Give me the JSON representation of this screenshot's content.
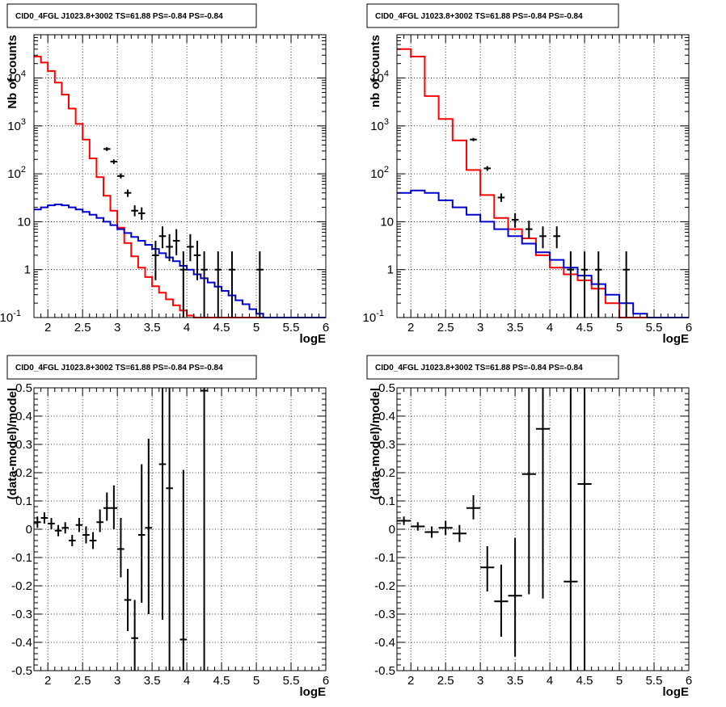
{
  "chart_data": [
    {
      "type": "line",
      "title": "CID0_4FGL J1023.8+3002 TS=61.88 PS=-0.84 PS=-0.84",
      "xlabel": "logE",
      "ylabel": "Nb of counts",
      "xlim": [
        1.8,
        6.0
      ],
      "ylim": [
        0.1,
        80000
      ],
      "yscale": "log",
      "grid": true,
      "x_ticks": [
        "2",
        "2.5",
        "3",
        "3.5",
        "4",
        "4.5",
        "5",
        "5.5",
        "6"
      ],
      "y_ticks": [
        "10^-1",
        "1",
        "10",
        "10^2",
        "10^3",
        "10^4"
      ],
      "bin_edges": [
        1.8,
        1.9,
        2.0,
        2.1,
        2.2,
        2.3,
        2.4,
        2.5,
        2.6,
        2.7,
        2.8,
        2.9,
        3.0,
        3.1,
        3.2,
        3.3,
        3.4,
        3.5,
        3.6,
        3.7,
        3.8,
        3.9,
        4.0,
        4.1,
        4.2,
        4.3,
        4.4,
        4.5,
        4.6,
        4.7,
        4.8,
        4.9,
        5.0,
        5.1,
        5.2,
        5.3,
        5.4,
        5.5,
        5.6,
        5.7,
        5.8,
        5.9,
        6.0
      ],
      "series": [
        {
          "color": "#ff0000",
          "kind": "step",
          "values": [
            28000,
            21000,
            14000,
            8000,
            4500,
            2300,
            1100,
            520,
            210,
            85,
            35,
            17,
            7.5,
            3.6,
            1.9,
            1.1,
            0.7,
            0.45,
            0.33,
            0.24,
            0.18,
            0.14,
            0.11,
            0.1,
            0.1,
            0.1,
            0.1,
            0.1,
            0.1,
            0.1,
            0.1,
            0.1,
            0.1,
            0.1,
            0.1,
            0.1,
            0.1,
            0.1,
            0.1,
            0.1,
            0.1,
            0.1
          ]
        },
        {
          "color": "#0000cc",
          "kind": "step",
          "values": [
            18,
            20,
            22,
            23,
            22,
            20,
            18,
            16,
            14,
            12,
            10,
            8.5,
            7,
            5.8,
            4.8,
            4,
            3.3,
            2.7,
            2.2,
            1.8,
            1.5,
            1.2,
            1.0,
            0.8,
            0.66,
            0.54,
            0.44,
            0.36,
            0.29,
            0.23,
            0.19,
            0.15,
            0.12,
            0.1,
            0.1,
            0.1,
            0.1,
            0.1,
            0.1,
            0.1,
            0.1,
            0.1
          ]
        }
      ],
      "points": [
        {
          "x": 2.85,
          "y": 330,
          "lo": 300,
          "hi": 360
        },
        {
          "x": 2.95,
          "y": 180,
          "lo": 160,
          "hi": 200
        },
        {
          "x": 3.05,
          "y": 90,
          "lo": 80,
          "hi": 102
        },
        {
          "x": 3.15,
          "y": 40,
          "lo": 33,
          "hi": 47
        },
        {
          "x": 3.25,
          "y": 17,
          "lo": 13,
          "hi": 22
        },
        {
          "x": 3.35,
          "y": 15,
          "lo": 11,
          "hi": 20
        },
        {
          "x": 3.55,
          "y": 2,
          "lo": 0.6,
          "hi": 4
        },
        {
          "x": 3.65,
          "y": 5,
          "lo": 2.8,
          "hi": 8
        },
        {
          "x": 3.75,
          "y": 3,
          "lo": 1.5,
          "hi": 5.5
        },
        {
          "x": 3.85,
          "y": 4,
          "lo": 2,
          "hi": 7
        },
        {
          "x": 3.95,
          "y": 1,
          "lo": 0.1,
          "hi": 2.4
        },
        {
          "x": 4.05,
          "y": 3,
          "lo": 1.5,
          "hi": 5.5
        },
        {
          "x": 4.15,
          "y": 2,
          "lo": 0.6,
          "hi": 4
        },
        {
          "x": 4.25,
          "y": 1,
          "lo": 0.1,
          "hi": 2.4
        },
        {
          "x": 4.45,
          "y": 1,
          "lo": 0.1,
          "hi": 2.4
        },
        {
          "x": 4.65,
          "y": 1,
          "lo": 0.1,
          "hi": 2.4
        },
        {
          "x": 5.05,
          "y": 1,
          "lo": 0.1,
          "hi": 2.4
        }
      ]
    },
    {
      "type": "line",
      "title": "CID0_4FGL J1023.8+3002 TS=61.88 PS=-0.84 PS=-0.84",
      "xlabel": "logE",
      "ylabel": "nb of counts",
      "xlim": [
        1.8,
        6.0
      ],
      "ylim": [
        0.1,
        80000
      ],
      "yscale": "log",
      "grid": true,
      "x_ticks": [
        "2",
        "2.5",
        "3",
        "3.5",
        "4",
        "4.5",
        "5",
        "5.5",
        "6"
      ],
      "y_ticks": [
        "10^-1",
        "1",
        "10",
        "10^2",
        "10^3",
        "10^4"
      ],
      "bin_edges": [
        1.8,
        2.0,
        2.2,
        2.4,
        2.6,
        2.8,
        3.0,
        3.2,
        3.4,
        3.6,
        3.8,
        4.0,
        4.2,
        4.4,
        4.6,
        4.8,
        5.0,
        5.2,
        5.4,
        5.6,
        5.8,
        6.0
      ],
      "series": [
        {
          "color": "#ff0000",
          "kind": "step",
          "values": [
            40000,
            28000,
            4200,
            1400,
            500,
            120,
            36,
            12,
            7,
            4.5,
            2,
            1.1,
            0.8,
            0.6,
            0.4,
            0.2,
            0.1,
            0.1,
            0.1,
            0.1,
            0.1
          ]
        },
        {
          "color": "#0000cc",
          "kind": "step",
          "values": [
            40,
            45,
            40,
            28,
            20,
            14,
            10,
            7,
            5,
            3.5,
            2.3,
            1.6,
            1.1,
            0.75,
            0.5,
            0.3,
            0.2,
            0.12,
            0.1,
            0.1,
            0.1
          ]
        }
      ],
      "points": [
        {
          "x": 2.9,
          "y": 520,
          "lo": 480,
          "hi": 560
        },
        {
          "x": 3.1,
          "y": 130,
          "lo": 115,
          "hi": 145
        },
        {
          "x": 3.3,
          "y": 32,
          "lo": 26,
          "hi": 39
        },
        {
          "x": 3.5,
          "y": 11,
          "lo": 7.5,
          "hi": 15
        },
        {
          "x": 3.7,
          "y": 7,
          "lo": 4.5,
          "hi": 10.5
        },
        {
          "x": 3.9,
          "y": 5,
          "lo": 2.8,
          "hi": 8
        },
        {
          "x": 4.1,
          "y": 5,
          "lo": 2.8,
          "hi": 8
        },
        {
          "x": 4.3,
          "y": 1,
          "lo": 0.1,
          "hi": 2.4
        },
        {
          "x": 4.5,
          "y": 1,
          "lo": 0.1,
          "hi": 2.4
        },
        {
          "x": 4.7,
          "y": 1,
          "lo": 0.1,
          "hi": 2.4
        },
        {
          "x": 5.1,
          "y": 1,
          "lo": 0.1,
          "hi": 2.4
        }
      ]
    },
    {
      "type": "scatter",
      "title": "CID0_4FGL J1023.8+3002 TS=61.88 PS=-0.84 PS=-0.84",
      "xlabel": "logE",
      "ylabel": "(data-model)/model",
      "xlim": [
        1.8,
        6.0
      ],
      "ylim": [
        -0.5,
        0.5
      ],
      "grid": true,
      "x_ticks": [
        "2",
        "2.5",
        "3",
        "3.5",
        "4",
        "4.5",
        "5",
        "5.5",
        "6"
      ],
      "y_ticks": [
        "-0.5",
        "-0.4",
        "-0.3",
        "-0.2",
        "-0.1",
        "0",
        "0.1",
        "0.2",
        "0.3",
        "0.4",
        "0.5"
      ],
      "xerr": 0.05,
      "points": [
        {
          "x": 1.85,
          "y": 0.025,
          "lo": 0.005,
          "hi": 0.045
        },
        {
          "x": 1.95,
          "y": 0.04,
          "lo": 0.02,
          "hi": 0.06
        },
        {
          "x": 2.05,
          "y": 0.02,
          "lo": 0.0,
          "hi": 0.04
        },
        {
          "x": 2.15,
          "y": -0.005,
          "lo": -0.025,
          "hi": 0.015
        },
        {
          "x": 2.25,
          "y": 0.005,
          "lo": -0.015,
          "hi": 0.025
        },
        {
          "x": 2.35,
          "y": -0.04,
          "lo": -0.06,
          "hi": -0.02
        },
        {
          "x": 2.45,
          "y": 0.015,
          "lo": -0.01,
          "hi": 0.04
        },
        {
          "x": 2.55,
          "y": -0.02,
          "lo": -0.05,
          "hi": 0.01
        },
        {
          "x": 2.65,
          "y": -0.04,
          "lo": -0.07,
          "hi": -0.01
        },
        {
          "x": 2.75,
          "y": 0.025,
          "lo": -0.01,
          "hi": 0.07
        },
        {
          "x": 2.85,
          "y": 0.075,
          "lo": 0.03,
          "hi": 0.13
        },
        {
          "x": 2.95,
          "y": 0.075,
          "lo": 0.0,
          "hi": 0.155
        },
        {
          "x": 3.05,
          "y": -0.07,
          "lo": -0.17,
          "hi": 0.04
        },
        {
          "x": 3.15,
          "y": -0.25,
          "lo": -0.36,
          "hi": -0.14
        },
        {
          "x": 3.25,
          "y": -0.385,
          "lo": -0.5,
          "hi": -0.25
        },
        {
          "x": 3.35,
          "y": -0.02,
          "lo": -0.26,
          "hi": 0.23
        },
        {
          "x": 3.45,
          "y": 0.005,
          "lo": -0.3,
          "hi": 0.32
        },
        {
          "x": 3.65,
          "y": 0.23,
          "lo": -0.32,
          "hi": 0.5
        },
        {
          "x": 3.75,
          "y": 0.145,
          "lo": -0.5,
          "hi": 0.5
        },
        {
          "x": 3.95,
          "y": -0.39,
          "lo": -0.5,
          "hi": 0.21
        },
        {
          "x": 4.25,
          "y": 0.49,
          "lo": -0.5,
          "hi": 0.5
        }
      ]
    },
    {
      "type": "scatter",
      "title": "CID0_4FGL J1023.8+3002 TS=61.88 PS=-0.84 PS=-0.84",
      "xlabel": "logE",
      "ylabel": "(data-model)/model",
      "xlim": [
        1.8,
        6.0
      ],
      "ylim": [
        -0.5,
        0.5
      ],
      "grid": true,
      "x_ticks": [
        "2",
        "2.5",
        "3",
        "3.5",
        "4",
        "4.5",
        "5",
        "5.5",
        "6"
      ],
      "y_ticks": [
        "-0.5",
        "-0.4",
        "-0.3",
        "-0.2",
        "-0.1",
        "0",
        "0.1",
        "0.2",
        "0.3",
        "0.4",
        "0.5"
      ],
      "xerr": 0.1,
      "points": [
        {
          "x": 1.9,
          "y": 0.03,
          "lo": 0.015,
          "hi": 0.045
        },
        {
          "x": 2.1,
          "y": 0.01,
          "lo": -0.005,
          "hi": 0.025
        },
        {
          "x": 2.3,
          "y": -0.01,
          "lo": -0.03,
          "hi": 0.01
        },
        {
          "x": 2.5,
          "y": 0.005,
          "lo": -0.02,
          "hi": 0.03
        },
        {
          "x": 2.7,
          "y": -0.015,
          "lo": -0.045,
          "hi": 0.015
        },
        {
          "x": 2.9,
          "y": 0.075,
          "lo": 0.035,
          "hi": 0.12
        },
        {
          "x": 3.1,
          "y": -0.135,
          "lo": -0.22,
          "hi": -0.06
        },
        {
          "x": 3.3,
          "y": -0.255,
          "lo": -0.38,
          "hi": -0.125
        },
        {
          "x": 3.5,
          "y": -0.235,
          "lo": -0.45,
          "hi": -0.03
        },
        {
          "x": 3.7,
          "y": 0.195,
          "lo": -0.23,
          "hi": 0.5
        },
        {
          "x": 3.9,
          "y": 0.355,
          "lo": -0.245,
          "hi": 0.5
        },
        {
          "x": 4.3,
          "y": -0.185,
          "lo": -0.5,
          "hi": 0.5
        },
        {
          "x": 4.5,
          "y": 0.16,
          "lo": -0.5,
          "hi": 0.5
        }
      ]
    }
  ]
}
